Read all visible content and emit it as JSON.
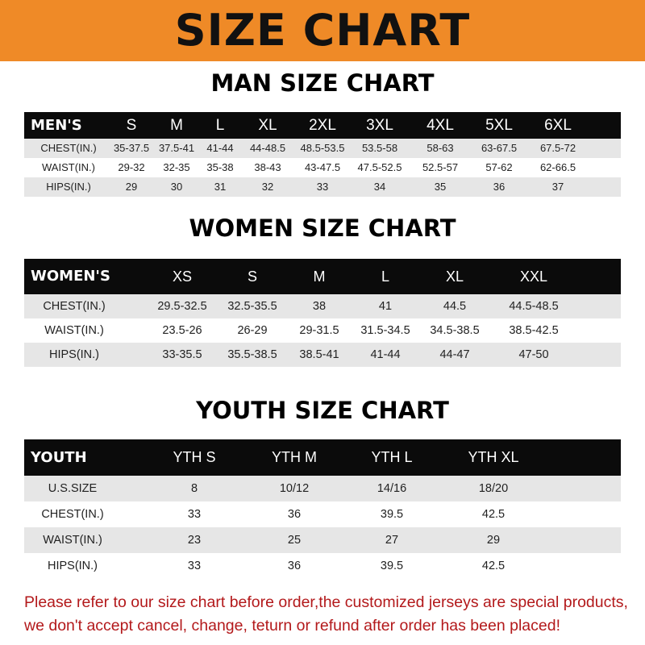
{
  "banner_title": "SIZE CHART",
  "colors": {
    "banner": "#EF8A27",
    "header_row": "#0b0b0b",
    "striped_row": "#e6e6e6",
    "notice_text": "#b3191b"
  },
  "men": {
    "title": "MAN SIZE CHART",
    "header": [
      "MEN'S",
      "S",
      "M",
      "L",
      "XL",
      "2XL",
      "3XL",
      "4XL",
      "5XL",
      "6XL"
    ],
    "rows": [
      [
        "CHEST(IN.)",
        "35-37.5",
        "37.5-41",
        "41-44",
        "44-48.5",
        "48.5-53.5",
        "53.5-58",
        "58-63",
        "63-67.5",
        "67.5-72"
      ],
      [
        "WAIST(IN.)",
        "29-32",
        "32-35",
        "35-38",
        "38-43",
        "43-47.5",
        "47.5-52.5",
        "52.5-57",
        "57-62",
        "62-66.5"
      ],
      [
        "HIPS(IN.)",
        "29",
        "30",
        "31",
        "32",
        "33",
        "34",
        "35",
        "36",
        "37"
      ]
    ]
  },
  "women": {
    "title": "WOMEN SIZE CHART",
    "header": [
      "WOMEN'S",
      "XS",
      "S",
      "M",
      "L",
      "XL",
      "XXL"
    ],
    "rows": [
      [
        "CHEST(IN.)",
        "29.5-32.5",
        "32.5-35.5",
        "38",
        "41",
        "44.5",
        "44.5-48.5"
      ],
      [
        "WAIST(IN.)",
        "23.5-26",
        "26-29",
        "29-31.5",
        "31.5-34.5",
        "34.5-38.5",
        "38.5-42.5"
      ],
      [
        "HIPS(IN.)",
        "33-35.5",
        "35.5-38.5",
        "38.5-41",
        "41-44",
        "44-47",
        "47-50"
      ]
    ]
  },
  "youth": {
    "title": "YOUTH SIZE CHART",
    "header": [
      "YOUTH",
      "YTH S",
      "YTH M",
      "YTH L",
      "YTH XL"
    ],
    "rows": [
      [
        "U.S.SIZE",
        "8",
        "10/12",
        "14/16",
        "18/20"
      ],
      [
        "CHEST(IN.)",
        "33",
        "36",
        "39.5",
        "42.5"
      ],
      [
        "WAIST(IN.)",
        "23",
        "25",
        "27",
        "29"
      ],
      [
        "HIPS(IN.)",
        "33",
        "36",
        "39.5",
        "42.5"
      ]
    ]
  },
  "notice": {
    "line1": "Please refer to our size chart before order,the customized jerseys are special products,",
    "line2": "we don't accept cancel, change, teturn or refund after order has been placed!"
  }
}
